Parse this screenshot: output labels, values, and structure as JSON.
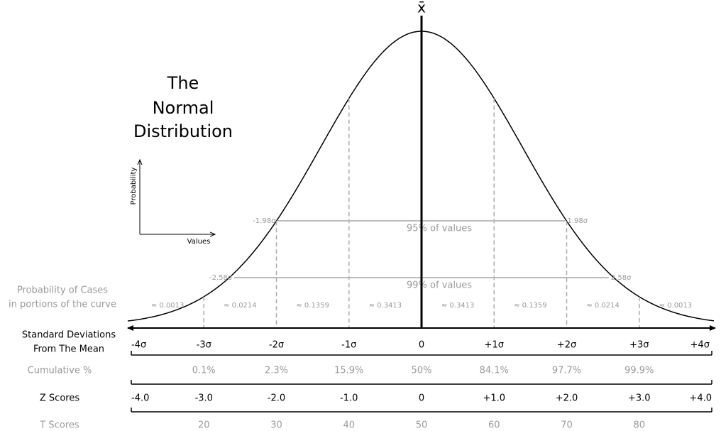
{
  "title": [
    "The",
    "Normal",
    "Distribution"
  ],
  "mean_label": "x̄",
  "inset": {
    "y_label": "Probability",
    "x_label": "Values"
  },
  "intervals": [
    {
      "left": "-1.98σ",
      "right": "1.98σ",
      "label": "95% of values"
    },
    {
      "left": "-2.58σ",
      "right": "2.58σ",
      "label": "99% of values"
    }
  ],
  "rows": {
    "probability": {
      "label": [
        "Probability of Cases",
        "in portions of the curve"
      ],
      "values": [
        "≈ 0.0013",
        "≈ 0.0214",
        "≈ 0.1359",
        "≈ 0.3413",
        "≈ 0.3413",
        "≈ 0.1359",
        "≈ 0.0214",
        "≈ 0.0013"
      ]
    },
    "sd": {
      "label": [
        "Standard Deviations",
        "From The Mean"
      ],
      "values": [
        "-4σ",
        "-3σ",
        "-2σ",
        "-1σ",
        "0",
        "+1σ",
        "+2σ",
        "+3σ",
        "+4σ"
      ]
    },
    "cumulative": {
      "label": "Cumulative %",
      "values": [
        "0.1%",
        "2.3%",
        "15.9%",
        "50%",
        "84.1%",
        "97.7%",
        "99.9%"
      ]
    },
    "z": {
      "label": "Z Scores",
      "values": [
        "-4.0",
        "-3.0",
        "-2.0",
        "-1.0",
        "0",
        "+1.0",
        "+2.0",
        "+3.0",
        "+4.0"
      ]
    },
    "t": {
      "label": "T Scores",
      "values": [
        "20",
        "30",
        "40",
        "50",
        "60",
        "70",
        "80"
      ]
    }
  }
}
